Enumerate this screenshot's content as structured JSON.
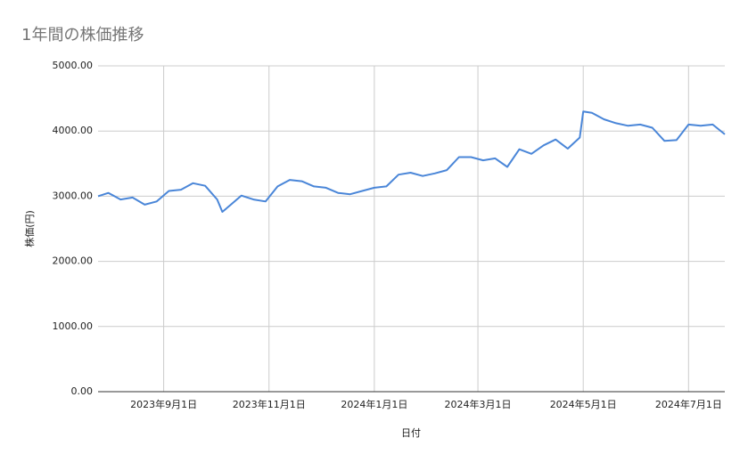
{
  "chart_data": {
    "type": "line",
    "title": "1年間の株価推移",
    "x_label": "日付",
    "y_label": "株価(円)",
    "x": [
      "2023-07-25",
      "2023-07-31",
      "2023-08-07",
      "2023-08-14",
      "2023-08-21",
      "2023-08-28",
      "2023-09-04",
      "2023-09-11",
      "2023-09-18",
      "2023-09-25",
      "2023-10-02",
      "2023-10-05",
      "2023-10-09",
      "2023-10-16",
      "2023-10-23",
      "2023-10-30",
      "2023-11-06",
      "2023-11-13",
      "2023-11-20",
      "2023-11-27",
      "2023-12-04",
      "2023-12-11",
      "2023-12-18",
      "2023-12-25",
      "2024-01-01",
      "2024-01-08",
      "2024-01-15",
      "2024-01-22",
      "2024-01-29",
      "2024-02-05",
      "2024-02-12",
      "2024-02-19",
      "2024-02-26",
      "2024-03-04",
      "2024-03-11",
      "2024-03-18",
      "2024-03-25",
      "2024-04-01",
      "2024-04-08",
      "2024-04-15",
      "2024-04-22",
      "2024-04-29",
      "2024-05-01",
      "2024-05-06",
      "2024-05-13",
      "2024-05-20",
      "2024-05-27",
      "2024-06-03",
      "2024-06-10",
      "2024-06-17",
      "2024-06-24",
      "2024-07-01",
      "2024-07-08",
      "2024-07-15",
      "2024-07-22"
    ],
    "series": [
      {
        "name": "株価",
        "color": "#4a86d8",
        "values": [
          3000,
          3050,
          2950,
          2980,
          2870,
          2920,
          3080,
          3100,
          3200,
          3160,
          2950,
          2760,
          2850,
          3010,
          2950,
          2920,
          3150,
          3250,
          3230,
          3150,
          3130,
          3050,
          3030,
          3080,
          3130,
          3150,
          3330,
          3360,
          3310,
          3350,
          3400,
          3600,
          3600,
          3550,
          3580,
          3450,
          3720,
          3650,
          3780,
          3870,
          3730,
          3900,
          4300,
          4280,
          4180,
          4120,
          4080,
          4100,
          4050,
          3850,
          3860,
          4100,
          4080,
          4100,
          3950
        ]
      }
    ],
    "xlim": [
      "2023-07-25",
      "2024-07-22"
    ],
    "xticks": [
      {
        "value": "2023-09-01",
        "label": "2023年9月1日"
      },
      {
        "value": "2023-11-01",
        "label": "2023年11月1日"
      },
      {
        "value": "2024-01-01",
        "label": "2024年1月1日"
      },
      {
        "value": "2024-03-01",
        "label": "2024年3月1日"
      },
      {
        "value": "2024-05-01",
        "label": "2024年5月1日"
      },
      {
        "value": "2024-07-01",
        "label": "2024年7月1日"
      }
    ],
    "ylim": [
      0,
      5000
    ],
    "yticks": [
      {
        "value": 0,
        "label": "0.00"
      },
      {
        "value": 1000,
        "label": "1000.00"
      },
      {
        "value": 2000,
        "label": "2000.00"
      },
      {
        "value": 3000,
        "label": "3000.00"
      },
      {
        "value": 4000,
        "label": "4000.00"
      },
      {
        "value": 5000,
        "label": "5000.00"
      }
    ],
    "grid": true
  }
}
